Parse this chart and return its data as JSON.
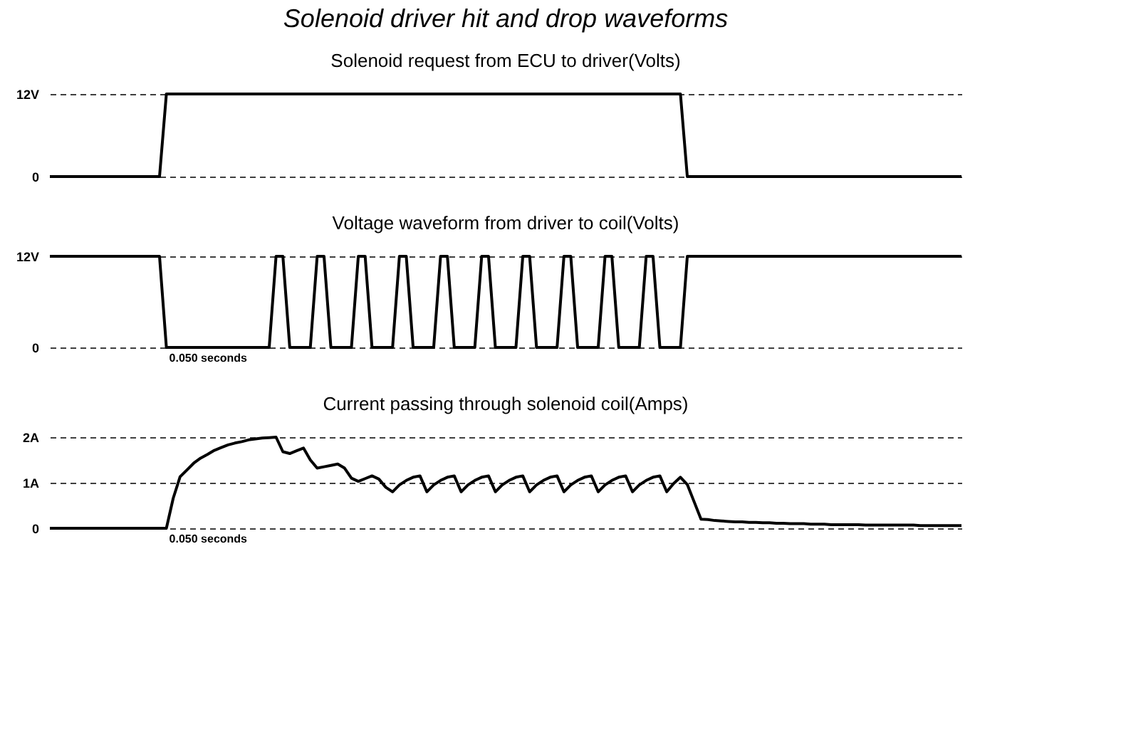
{
  "chart_data": [
    {
      "type": "line",
      "title": "Solenoid driver hit and drop waveforms",
      "subtitle": "Solenoid request from ECU to driver(Volts)",
      "categories": [
        null,
        null,
        null,
        null,
        null,
        null,
        null,
        null,
        null,
        null,
        null,
        null,
        null,
        null,
        null,
        null,
        null,
        null,
        null,
        null,
        null,
        null,
        null,
        null,
        null,
        null,
        null,
        null,
        null,
        null,
        null,
        null,
        null,
        null,
        null,
        null,
        null,
        null,
        null,
        null,
        null,
        null,
        null,
        null,
        null,
        null,
        null,
        null,
        null,
        null,
        null,
        null,
        null,
        null,
        null,
        null,
        null,
        null,
        null,
        null,
        null,
        null,
        null,
        null,
        null,
        null,
        null,
        null,
        null,
        null,
        null,
        null,
        null,
        null,
        null,
        null,
        null,
        null,
        null,
        null,
        null,
        null,
        null,
        null,
        null,
        null,
        null,
        null,
        null,
        null,
        null,
        null,
        null,
        null,
        null,
        null,
        null,
        null,
        null,
        null,
        null,
        null,
        null,
        null,
        null,
        null,
        null,
        null,
        null,
        null,
        null,
        null,
        null,
        null,
        null,
        null,
        null,
        null,
        null,
        null,
        null,
        null,
        null,
        null,
        null,
        null,
        null,
        null,
        null,
        null,
        null,
        null,
        null,
        null
      ],
      "series": [
        {
          "color": "#000000",
          "values": [
            0,
            0,
            0,
            0,
            0,
            0,
            0,
            0,
            0,
            0,
            0,
            0,
            0,
            0,
            0,
            0,
            0,
            12,
            12,
            12,
            12,
            12,
            12,
            12,
            12,
            12,
            12,
            12,
            12,
            12,
            12,
            12,
            12,
            12,
            12,
            12,
            12,
            12,
            12,
            12,
            12,
            12,
            12,
            12,
            12,
            12,
            12,
            12,
            12,
            12,
            12,
            12,
            12,
            12,
            12,
            12,
            12,
            12,
            12,
            12,
            12,
            12,
            12,
            12,
            12,
            12,
            12,
            12,
            12,
            12,
            12,
            12,
            12,
            12,
            12,
            12,
            12,
            12,
            12,
            12,
            12,
            12,
            12,
            12,
            12,
            12,
            12,
            12,
            12,
            12,
            12,
            12,
            12,
            0,
            0,
            0,
            0,
            0,
            0,
            0,
            0,
            0,
            0,
            0,
            0,
            0,
            0,
            0,
            0,
            0,
            0,
            0,
            0,
            0,
            0,
            0,
            0,
            0,
            0,
            0,
            0,
            0,
            0,
            0,
            0,
            0,
            0,
            0,
            0,
            0,
            0,
            0,
            0,
            0
          ]
        }
      ],
      "ylim": [
        0,
        12
      ],
      "yticks": [
        0,
        {
          "value": 12,
          "label": "12V"
        }
      ],
      "grid": "y",
      "tick_labels": "y",
      "line_style": "solid",
      "marker": "none"
    },
    {
      "type": "line",
      "title": "Voltage waveform from driver to coil(Volts)",
      "categories": [
        null,
        null,
        null,
        null,
        null,
        null,
        null,
        null,
        null,
        null,
        null,
        null,
        null,
        null,
        null,
        null,
        null,
        null,
        null,
        null,
        null,
        null,
        null,
        null,
        null,
        null,
        null,
        null,
        null,
        null,
        null,
        null,
        null,
        null,
        null,
        null,
        null,
        null,
        null,
        null,
        null,
        null,
        null,
        null,
        null,
        null,
        null,
        null,
        null,
        null,
        null,
        null,
        null,
        null,
        null,
        null,
        null,
        null,
        null,
        null,
        null,
        null,
        null,
        null,
        null,
        null,
        null,
        null,
        null,
        null,
        null,
        null,
        null,
        null,
        null,
        null,
        null,
        null,
        null,
        null,
        null,
        null,
        null,
        null,
        null,
        null,
        null,
        null,
        null,
        null,
        null,
        null,
        null,
        null,
        null,
        null,
        null,
        null,
        null,
        null,
        null,
        null,
        null,
        null,
        null,
        null,
        null,
        null,
        null,
        null,
        null,
        null,
        null,
        null,
        null,
        null,
        null,
        null,
        null,
        null,
        null,
        null,
        null,
        null,
        null,
        null,
        null,
        null,
        null,
        null,
        null,
        null,
        null,
        null
      ],
      "series": [
        {
          "color": "#000000",
          "values": [
            12,
            12,
            12,
            12,
            12,
            12,
            12,
            12,
            12,
            12,
            12,
            12,
            12,
            12,
            12,
            12,
            12,
            0,
            0,
            0,
            0,
            0,
            0,
            0,
            0,
            0,
            0,
            0,
            0,
            0,
            0,
            0,
            0,
            12,
            12,
            0,
            0,
            0,
            0,
            12,
            12,
            0,
            0,
            0,
            0,
            12,
            12,
            0,
            0,
            0,
            0,
            12,
            12,
            0,
            0,
            0,
            0,
            12,
            12,
            0,
            0,
            0,
            0,
            12,
            12,
            0,
            0,
            0,
            0,
            12,
            12,
            0,
            0,
            0,
            0,
            12,
            12,
            0,
            0,
            0,
            0,
            12,
            12,
            0,
            0,
            0,
            0,
            12,
            12,
            0,
            0,
            0,
            0,
            12,
            12,
            12,
            12,
            12,
            12,
            12,
            12,
            12,
            12,
            12,
            12,
            12,
            12,
            12,
            12,
            12,
            12,
            12,
            12,
            12,
            12,
            12,
            12,
            12,
            12,
            12,
            12,
            12,
            12,
            12,
            12,
            12,
            12,
            12,
            12,
            12,
            12,
            12,
            12,
            12
          ]
        }
      ],
      "ylim": [
        0,
        12
      ],
      "yticks": [
        0,
        {
          "value": 12,
          "label": "12V"
        }
      ],
      "annotations": [
        "0.050 seconds"
      ],
      "grid": "y",
      "tick_labels": "y",
      "line_style": "solid",
      "marker": "none"
    },
    {
      "type": "line",
      "title": "Current passing through solenoid coil(Amps)",
      "categories": [
        null,
        null,
        null,
        null,
        null,
        null,
        null,
        null,
        null,
        null,
        null,
        null,
        null,
        null,
        null,
        null,
        null,
        null,
        null,
        null,
        null,
        null,
        null,
        null,
        null,
        null,
        null,
        null,
        null,
        null,
        null,
        null,
        null,
        null,
        null,
        null,
        null,
        null,
        null,
        null,
        null,
        null,
        null,
        null,
        null,
        null,
        null,
        null,
        null,
        null,
        null,
        null,
        null,
        null,
        null,
        null,
        null,
        null,
        null,
        null,
        null,
        null,
        null,
        null,
        null,
        null,
        null,
        null,
        null,
        null,
        null,
        null,
        null,
        null,
        null,
        null,
        null,
        null,
        null,
        null,
        null,
        null,
        null,
        null,
        null,
        null,
        null,
        null,
        null,
        null,
        null,
        null,
        null,
        null,
        null,
        null,
        null,
        null,
        null,
        null,
        null,
        null,
        null,
        null,
        null,
        null,
        null,
        null,
        null,
        null,
        null,
        null,
        null,
        null,
        null,
        null,
        null,
        null,
        null,
        null,
        null,
        null,
        null,
        null,
        null,
        null,
        null,
        null,
        null,
        null,
        null,
        null,
        null,
        null
      ],
      "series": [
        {
          "color": "#000000",
          "values": [
            0,
            0,
            0,
            0,
            0,
            0,
            0,
            0,
            0,
            0,
            0,
            0,
            0,
            0,
            0,
            0,
            0,
            0,
            0.66,
            1.13,
            1.28,
            1.43,
            1.54,
            1.62,
            1.71,
            1.77,
            1.83,
            1.87,
            1.9,
            1.94,
            1.96,
            1.98,
            1.99,
            2.0,
            1.68,
            1.64,
            1.7,
            1.76,
            1.5,
            1.32,
            1.35,
            1.38,
            1.41,
            1.32,
            1.1,
            1.03,
            1.09,
            1.15,
            1.08,
            0.9,
            0.8,
            0.95,
            1.05,
            1.12,
            1.15,
            0.8,
            0.95,
            1.05,
            1.12,
            1.15,
            0.8,
            0.95,
            1.05,
            1.12,
            1.15,
            0.8,
            0.95,
            1.05,
            1.12,
            1.15,
            0.8,
            0.95,
            1.05,
            1.12,
            1.15,
            0.8,
            0.95,
            1.05,
            1.12,
            1.15,
            0.8,
            0.95,
            1.05,
            1.12,
            1.15,
            0.8,
            0.95,
            1.05,
            1.12,
            1.15,
            0.8,
            0.98,
            1.12,
            0.96,
            0.58,
            0.2,
            0.19,
            0.17,
            0.16,
            0.15,
            0.14,
            0.14,
            0.13,
            0.13,
            0.12,
            0.12,
            0.11,
            0.11,
            0.1,
            0.1,
            0.1,
            0.09,
            0.09,
            0.09,
            0.08,
            0.08,
            0.08,
            0.08,
            0.08,
            0.07,
            0.07,
            0.07,
            0.07,
            0.07,
            0.07,
            0.07,
            0.07,
            0.06,
            0.06,
            0.06,
            0.06,
            0.06,
            0.06,
            0.06
          ]
        }
      ],
      "ylim": [
        0,
        2
      ],
      "yticks": [
        0,
        {
          "value": 1,
          "label": "1A"
        },
        {
          "value": 2,
          "label": "2A"
        }
      ],
      "annotations": [
        "0.050 seconds"
      ],
      "grid": "y",
      "tick_labels": "y",
      "line_style": "solid",
      "marker": "none"
    }
  ]
}
